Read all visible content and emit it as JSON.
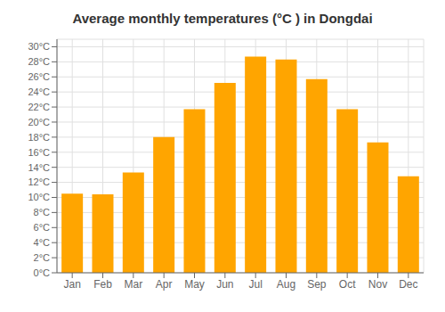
{
  "chart_data": {
    "type": "bar",
    "title": "Average monthly temperatures (°C ) in Dongdai",
    "categories": [
      "Jan",
      "Feb",
      "Mar",
      "Apr",
      "May",
      "Jun",
      "Jul",
      "Aug",
      "Sep",
      "Oct",
      "Nov",
      "Dec"
    ],
    "values": [
      10.5,
      10.4,
      13.3,
      18.0,
      21.7,
      25.2,
      28.7,
      28.3,
      25.7,
      21.7,
      17.3,
      12.8
    ],
    "color": "#FFA500",
    "ylim": [
      0,
      31
    ],
    "yticks": [
      {
        "value": 0,
        "label": "0°C"
      },
      {
        "value": 2,
        "label": "2°C"
      },
      {
        "value": 4,
        "label": "4°C"
      },
      {
        "value": 6,
        "label": "6°C"
      },
      {
        "value": 8,
        "label": "8°C"
      },
      {
        "value": 10,
        "label": "10°C"
      },
      {
        "value": 12,
        "label": "12°C"
      },
      {
        "value": 14,
        "label": "14°C"
      },
      {
        "value": 16,
        "label": "16°C"
      },
      {
        "value": 18,
        "label": "18°C"
      },
      {
        "value": 20,
        "label": "20°C"
      },
      {
        "value": 22,
        "label": "22°C"
      },
      {
        "value": 24,
        "label": "24°C"
      },
      {
        "value": 26,
        "label": "26°C"
      },
      {
        "value": 28,
        "label": "28°C"
      },
      {
        "value": 30,
        "label": "30°C"
      }
    ],
    "grid": true
  }
}
